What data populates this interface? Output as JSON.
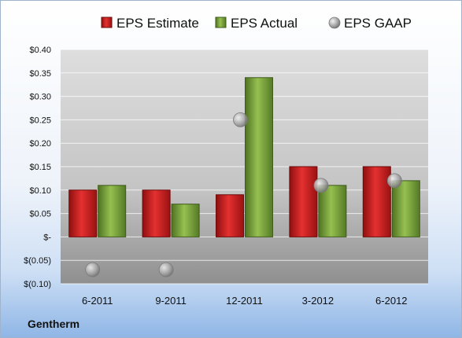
{
  "chart_data": {
    "type": "bar",
    "categories": [
      "6-2011",
      "9-2011",
      "12-2011",
      "3-2012",
      "6-2012"
    ],
    "series": [
      {
        "name": "EPS Estimate",
        "kind": "bar",
        "color": "#cc1f1f",
        "values": [
          0.1,
          0.1,
          0.09,
          0.15,
          0.15
        ]
      },
      {
        "name": "EPS Actual",
        "kind": "bar",
        "color": "#7aa43a",
        "values": [
          0.11,
          0.07,
          0.34,
          0.11,
          0.12
        ]
      },
      {
        "name": "EPS GAAP",
        "kind": "scatter",
        "color": "#a9a9a9",
        "values": [
          -0.07,
          -0.07,
          0.25,
          0.11,
          0.12
        ]
      }
    ],
    "ylim": [
      -0.1,
      0.4
    ],
    "yticks": [
      0.4,
      0.35,
      0.3,
      0.25,
      0.2,
      0.15,
      0.1,
      0.05,
      0,
      -0.05,
      -0.1
    ],
    "ytick_labels": [
      "$0.40",
      "$0.35",
      "$0.30",
      "$0.25",
      "$0.20",
      "$0.15",
      "$0.10",
      "$0.05",
      "$-",
      "$(0.05)",
      "$(0.10)"
    ],
    "grid": true,
    "legend_position": "top"
  },
  "company": "Gentherm"
}
